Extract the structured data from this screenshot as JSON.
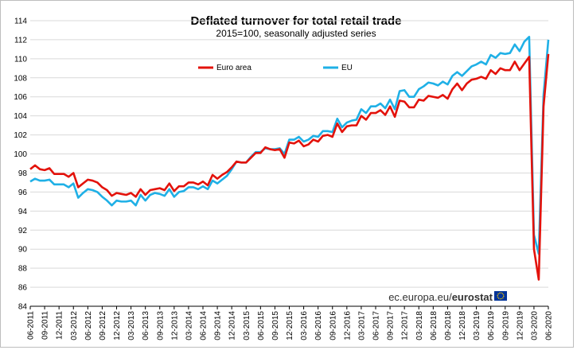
{
  "chart_data": {
    "type": "line",
    "title": "Deflated turnover for total retail trade",
    "subtitle": "2015=100, seasonally adjusted series",
    "ylim": [
      84,
      114
    ],
    "yticks": [
      84,
      86,
      88,
      90,
      92,
      94,
      96,
      98,
      100,
      102,
      104,
      106,
      108,
      110,
      112,
      114
    ],
    "x_start": "06-2011",
    "x_tick_labels": [
      "06-2011",
      "09-2011",
      "12-2011",
      "03-2012",
      "06-2012",
      "09-2012",
      "12-2012",
      "03-2013",
      "06-2013",
      "09-2013",
      "12-2013",
      "03-2014",
      "06-2014",
      "09-2014",
      "12-2014",
      "03-2015",
      "06-2015",
      "09-2015",
      "12-2015",
      "03-2016",
      "06-2016",
      "09-2016",
      "12-2016",
      "03-2017",
      "06-2017",
      "09-2017",
      "12-2017",
      "03-2018",
      "06-2018",
      "09-2018",
      "12-2018",
      "03-2019",
      "06-2019",
      "09-2019",
      "12-2019",
      "03-2020",
      "06-2020"
    ],
    "grid": true,
    "legend_position": "top-center",
    "series": [
      {
        "name": "Euro area",
        "color": "#e3120b",
        "values": [
          98.4,
          98.8,
          98.4,
          98.3,
          98.5,
          97.9,
          97.9,
          97.9,
          97.6,
          98.0,
          96.5,
          96.9,
          97.3,
          97.2,
          97.0,
          96.5,
          96.2,
          95.6,
          95.9,
          95.8,
          95.7,
          95.9,
          95.5,
          96.3,
          95.7,
          96.2,
          96.3,
          96.4,
          96.2,
          96.9,
          96.1,
          96.6,
          96.6,
          97.0,
          97.0,
          96.8,
          97.1,
          96.7,
          97.8,
          97.4,
          97.8,
          98.1,
          98.6,
          99.2,
          99.1,
          99.1,
          99.6,
          100.1,
          100.1,
          100.7,
          100.5,
          100.4,
          100.5,
          99.6,
          101.2,
          101.1,
          101.4,
          100.8,
          101.0,
          101.5,
          101.3,
          101.9,
          102.0,
          101.8,
          103.2,
          102.3,
          102.9,
          103.0,
          103.0,
          104.0,
          103.6,
          104.3,
          104.3,
          104.6,
          104.1,
          105.0,
          103.9,
          105.6,
          105.5,
          104.9,
          104.9,
          105.7,
          105.6,
          106.1,
          106.0,
          105.9,
          106.2,
          105.8,
          106.8,
          107.4,
          106.7,
          107.4,
          107.8,
          107.9,
          108.1,
          107.9,
          108.8,
          108.4,
          109.0,
          108.8,
          108.8,
          109.7,
          108.8,
          109.5,
          110.2,
          90.0,
          86.8,
          105.0,
          110.5
        ]
      },
      {
        "name": "EU",
        "color": "#1fb0e6",
        "values": [
          97.1,
          97.4,
          97.2,
          97.2,
          97.3,
          96.8,
          96.8,
          96.8,
          96.5,
          96.9,
          95.4,
          95.9,
          96.3,
          96.2,
          96.0,
          95.5,
          95.1,
          94.6,
          95.1,
          95.0,
          95.0,
          95.1,
          94.6,
          95.7,
          95.1,
          95.7,
          95.9,
          95.8,
          95.6,
          96.3,
          95.5,
          96.0,
          96.1,
          96.5,
          96.5,
          96.3,
          96.6,
          96.3,
          97.2,
          96.9,
          97.3,
          97.7,
          98.4,
          99.2,
          99.1,
          99.1,
          99.7,
          100.2,
          100.2,
          100.6,
          100.5,
          100.5,
          100.6,
          100.0,
          101.5,
          101.5,
          101.8,
          101.3,
          101.5,
          101.9,
          101.8,
          102.4,
          102.4,
          102.3,
          103.7,
          102.8,
          103.3,
          103.5,
          103.6,
          104.7,
          104.3,
          105.0,
          105.0,
          105.3,
          104.8,
          105.7,
          104.7,
          106.6,
          106.7,
          106.0,
          106.0,
          106.8,
          107.1,
          107.5,
          107.4,
          107.2,
          107.6,
          107.3,
          108.2,
          108.6,
          108.2,
          108.7,
          109.2,
          109.4,
          109.7,
          109.4,
          110.4,
          110.1,
          110.6,
          110.5,
          110.6,
          111.5,
          110.8,
          111.8,
          112.3,
          91.5,
          89.5,
          106.2,
          112.0
        ]
      }
    ]
  },
  "source": {
    "prefix": "ec.europa.eu/",
    "brand": "eurostat"
  }
}
